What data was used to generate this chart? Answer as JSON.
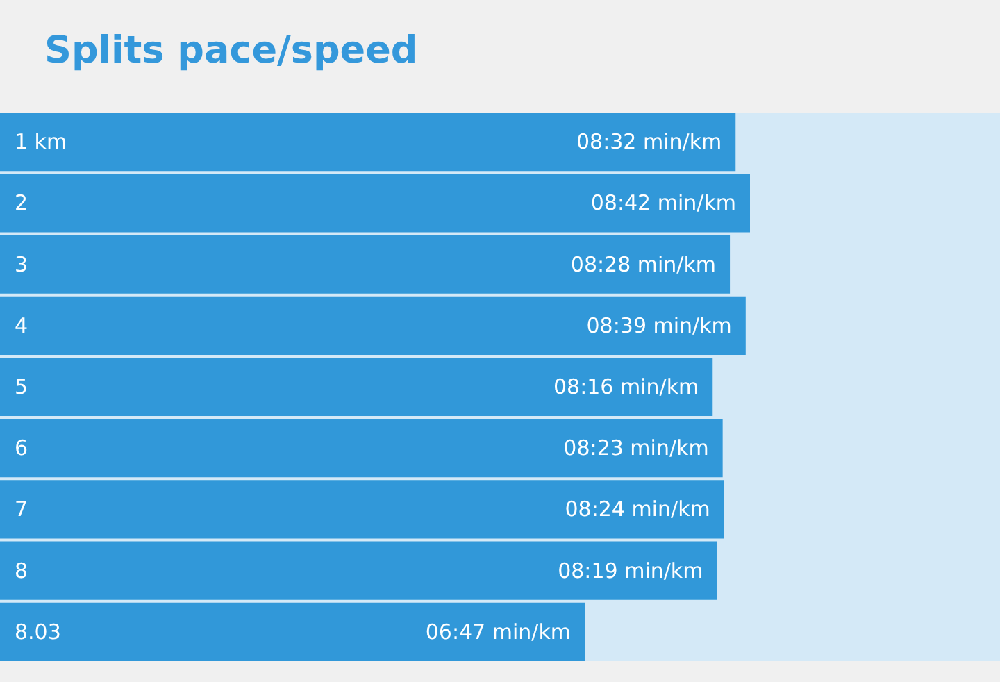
{
  "chart_data": {
    "type": "bar",
    "title": "Splits pace/speed",
    "orientation": "horizontal",
    "categories": [
      "1 km",
      "2",
      "3",
      "4",
      "5",
      "6",
      "7",
      "8",
      "8.03"
    ],
    "values": [
      8.533,
      8.7,
      8.467,
      8.65,
      8.267,
      8.383,
      8.4,
      8.317,
      6.783
    ],
    "value_labels": [
      "08:32 min/km",
      "08:42 min/km",
      "08:28 min/km",
      "08:39 min/km",
      "08:16 min/km",
      "08:23 min/km",
      "08:24 min/km",
      "08:19 min/km",
      "06:47 min/km"
    ],
    "color": "#3198d9",
    "xlim": [
      0,
      11.6
    ],
    "tick_labels": "y",
    "grid": false,
    "bands": [
      {
        "axis": "x",
        "from": 0,
        "to": 11.6,
        "color": "#d4e9f7"
      }
    ]
  }
}
